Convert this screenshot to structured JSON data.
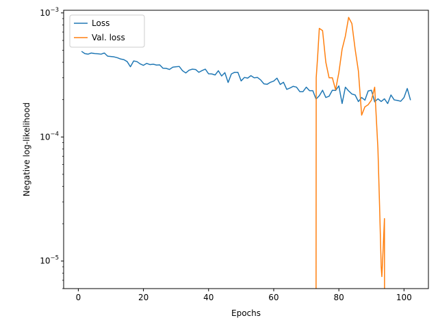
{
  "chart_data": {
    "type": "line",
    "title": "",
    "xlabel": "Epochs",
    "ylabel": "Negative log-likelihood",
    "xlim": [
      -4.5,
      107.5
    ],
    "ylim": [
      6e-06,
      0.00105
    ],
    "yscale": "log",
    "grid": false,
    "legend_position": "top-left",
    "x_ticks": [
      {
        "value": 0,
        "label": "0"
      },
      {
        "value": 20,
        "label": "20"
      },
      {
        "value": 40,
        "label": "40"
      },
      {
        "value": 60,
        "label": "60"
      },
      {
        "value": 80,
        "label": "80"
      },
      {
        "value": 100,
        "label": "100"
      }
    ],
    "y_ticks": [
      {
        "value": 1e-05,
        "base": "10",
        "exp": "−5"
      },
      {
        "value": 0.0001,
        "base": "10",
        "exp": "−4"
      },
      {
        "value": 0.001,
        "base": "10",
        "exp": "−3"
      }
    ],
    "series": [
      {
        "name": "Loss",
        "color": "#1f77b4",
        "x": [
          1,
          2,
          3,
          4,
          5,
          6,
          7,
          8,
          9,
          10,
          11,
          12,
          13,
          14,
          15,
          16,
          17,
          18,
          19,
          20,
          21,
          22,
          23,
          24,
          25,
          26,
          27,
          28,
          29,
          30,
          31,
          32,
          33,
          34,
          35,
          36,
          37,
          38,
          39,
          40,
          41,
          42,
          43,
          44,
          45,
          46,
          47,
          48,
          49,
          50,
          51,
          52,
          53,
          54,
          55,
          56,
          57,
          58,
          59,
          60,
          61,
          62,
          63,
          64,
          65,
          66,
          67,
          68,
          69,
          70,
          71,
          72,
          73,
          74,
          75,
          76,
          77,
          78,
          79,
          80,
          81,
          82,
          83,
          84,
          85,
          86,
          87,
          88,
          89,
          90,
          91,
          92,
          93,
          94,
          95,
          96,
          97,
          98,
          99,
          100,
          101,
          102
        ],
        "values": [
          0.00049,
          0.00047,
          0.000465,
          0.000475,
          0.00047,
          0.000468,
          0.000465,
          0.000475,
          0.000448,
          0.000445,
          0.000442,
          0.000435,
          0.000425,
          0.00042,
          0.000405,
          0.000368,
          0.00041,
          0.000405,
          0.000388,
          0.000378,
          0.000392,
          0.000383,
          0.000386,
          0.00038,
          0.000381,
          0.000358,
          0.000357,
          0.00035,
          0.000365,
          0.000368,
          0.00037,
          0.000342,
          0.000328,
          0.000345,
          0.000352,
          0.00035,
          0.000332,
          0.000343,
          0.000352,
          0.000323,
          0.000322,
          0.000316,
          0.000342,
          0.00031,
          0.00033,
          0.000275,
          0.000322,
          0.000332,
          0.000332,
          0.000283,
          0.000302,
          0.000298,
          0.000312,
          0.0003,
          0.000302,
          0.000288,
          0.000268,
          0.000266,
          0.000276,
          0.000282,
          0.000298,
          0.000265,
          0.000276,
          0.000242,
          0.000248,
          0.000256,
          0.000252,
          0.000232,
          0.000232,
          0.000252,
          0.000236,
          0.000236,
          0.000202,
          0.000215,
          0.000238,
          0.000208,
          0.000213,
          0.000238,
          0.000237,
          0.000258,
          0.000186,
          0.000252,
          0.000235,
          0.000222,
          0.000218,
          0.000193,
          0.000208,
          0.000198,
          0.000235,
          0.000238,
          0.000192,
          0.000203,
          0.000193,
          0.000203,
          0.000186,
          0.000218,
          0.000199,
          0.000197,
          0.000194,
          0.000208,
          0.000246,
          0.000198
        ]
      },
      {
        "name": "Val. loss",
        "color": "#ff7f0e",
        "x": [
          73,
          73.05,
          73.5,
          74,
          75,
          76,
          77,
          78,
          79,
          80,
          81,
          82,
          83,
          84,
          85,
          86,
          87,
          88,
          89,
          90,
          91,
          92,
          92.5,
          93,
          93.2,
          93.5,
          94,
          94.02
        ],
        "values": [
          6e-06,
          0.0003,
          0.00045,
          0.00075,
          0.00072,
          0.0004,
          0.0003,
          0.0003,
          0.00024,
          0.00033,
          0.00051,
          0.00065,
          0.00092,
          0.00082,
          0.00051,
          0.00034,
          0.00015,
          0.000175,
          0.000182,
          0.000198,
          0.000252,
          8e-05,
          2.8e-05,
          9e-06,
          7.5e-06,
          1.1e-05,
          2.2e-05,
          6e-06
        ]
      }
    ]
  }
}
